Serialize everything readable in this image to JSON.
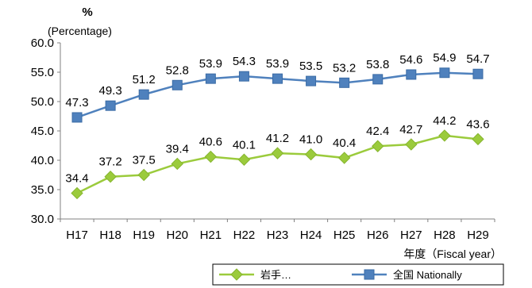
{
  "chart_data": {
    "type": "line",
    "ylabel_unit": "%",
    "ylabel": "(Percentage)",
    "xlabel": "年度（Fiscal year）",
    "categories": [
      "H17",
      "H18",
      "H19",
      "H20",
      "H21",
      "H22",
      "H23",
      "H24",
      "H25",
      "H26",
      "H27",
      "H28",
      "H29"
    ],
    "ylim": [
      30.0,
      60.0
    ],
    "yticks": [
      "30.0",
      "35.0",
      "40.0",
      "45.0",
      "50.0",
      "55.0",
      "60.0"
    ],
    "series": [
      {
        "name": "全国 Nationally",
        "color": "#4F81BD",
        "marker": "square",
        "values": [
          47.3,
          49.3,
          51.2,
          52.8,
          53.9,
          54.3,
          53.9,
          53.5,
          53.2,
          53.8,
          54.6,
          54.9,
          54.7
        ],
        "labels": [
          "47.3",
          "49.3",
          "51.2",
          "52.8",
          "53.9",
          "54.3",
          "53.9",
          "53.5",
          "53.2",
          "53.8",
          "54.6",
          "54.9",
          "54.7"
        ]
      },
      {
        "name": "岩手…",
        "color": "#9BCB3C",
        "marker": "diamond",
        "values": [
          34.4,
          37.2,
          37.5,
          39.4,
          40.6,
          40.1,
          41.2,
          41.0,
          40.4,
          42.4,
          42.7,
          44.2,
          43.6
        ],
        "labels": [
          "34.4",
          "37.2",
          "37.5",
          "39.4",
          "40.6",
          "40.1",
          "41.2",
          "41.0",
          "40.4",
          "42.4",
          "42.7",
          "44.2",
          "43.6"
        ]
      }
    ],
    "legend_position": "bottom-right",
    "grid": false
  }
}
